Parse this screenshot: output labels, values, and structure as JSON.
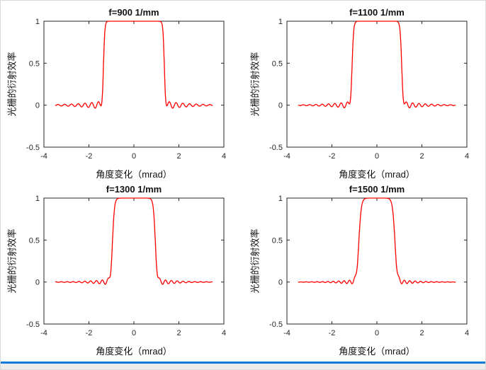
{
  "figure": {
    "background": "#ffffff",
    "frame_color": "#d9d9d9",
    "bottom_accent_color": "#0f7bd7",
    "bottom_strip_color": "#ececec"
  },
  "chart_data": [
    {
      "type": "line",
      "title": "f=900 1/mm",
      "xlabel": "角度变化（mrad）",
      "ylabel": "光栅的衍射效率",
      "xlim": [
        -4,
        4
      ],
      "ylim": [
        -0.5,
        1
      ],
      "xticks": [
        -4,
        -2,
        0,
        2,
        4
      ],
      "yticks": [
        -0.5,
        0,
        0.5,
        1
      ],
      "series_color": "#ff0000",
      "plateau_value": 1,
      "baseline_value": 0,
      "model": {
        "half_width": 1.35,
        "edge": 0.03,
        "ripple_amp": 0.05,
        "ripple_period": 0.3,
        "ripple_decay": 1.1,
        "x_start": -3.5,
        "x_end": 3.5
      }
    },
    {
      "type": "line",
      "title": "f=1100 1/mm",
      "xlabel": "角度变化（mrad）",
      "ylabel": "光栅的衍射效率",
      "xlim": [
        -4,
        4
      ],
      "ylim": [
        -0.5,
        1
      ],
      "xticks": [
        -4,
        -2,
        0,
        2,
        4
      ],
      "yticks": [
        -0.5,
        0,
        0.5,
        1
      ],
      "series_color": "#ff0000",
      "plateau_value": 1,
      "baseline_value": 0,
      "model": {
        "half_width": 1.1,
        "edge": 0.035,
        "ripple_amp": 0.045,
        "ripple_period": 0.28,
        "ripple_decay": 1.0,
        "x_start": -3.5,
        "x_end": 3.5
      }
    },
    {
      "type": "line",
      "title": "f=1300 1/mm",
      "xlabel": "角度变化（mrad）",
      "ylabel": "光栅的衍射效率",
      "xlim": [
        -4,
        4
      ],
      "ylim": [
        -0.5,
        1
      ],
      "xticks": [
        -4,
        -2,
        0,
        2,
        4
      ],
      "yticks": [
        -0.5,
        0,
        0.5,
        1
      ],
      "series_color": "#ff0000",
      "plateau_value": 1,
      "baseline_value": 0,
      "model": {
        "half_width": 0.95,
        "edge": 0.045,
        "ripple_amp": 0.04,
        "ripple_period": 0.26,
        "ripple_decay": 0.9,
        "x_start": -3.5,
        "x_end": 3.5
      }
    },
    {
      "type": "line",
      "title": "f=1500 1/mm",
      "xlabel": "角度变化（mrad）",
      "ylabel": "光栅的衍射效率",
      "xlim": [
        -4,
        4
      ],
      "ylim": [
        -0.5,
        1
      ],
      "xticks": [
        -4,
        -2,
        0,
        2,
        4
      ],
      "yticks": [
        -0.5,
        0,
        0.5,
        1
      ],
      "series_color": "#ff0000",
      "plateau_value": 1,
      "baseline_value": 0,
      "model": {
        "half_width": 0.8,
        "edge": 0.055,
        "ripple_amp": 0.035,
        "ripple_period": 0.24,
        "ripple_decay": 0.85,
        "x_start": -3.5,
        "x_end": 3.5
      }
    }
  ]
}
